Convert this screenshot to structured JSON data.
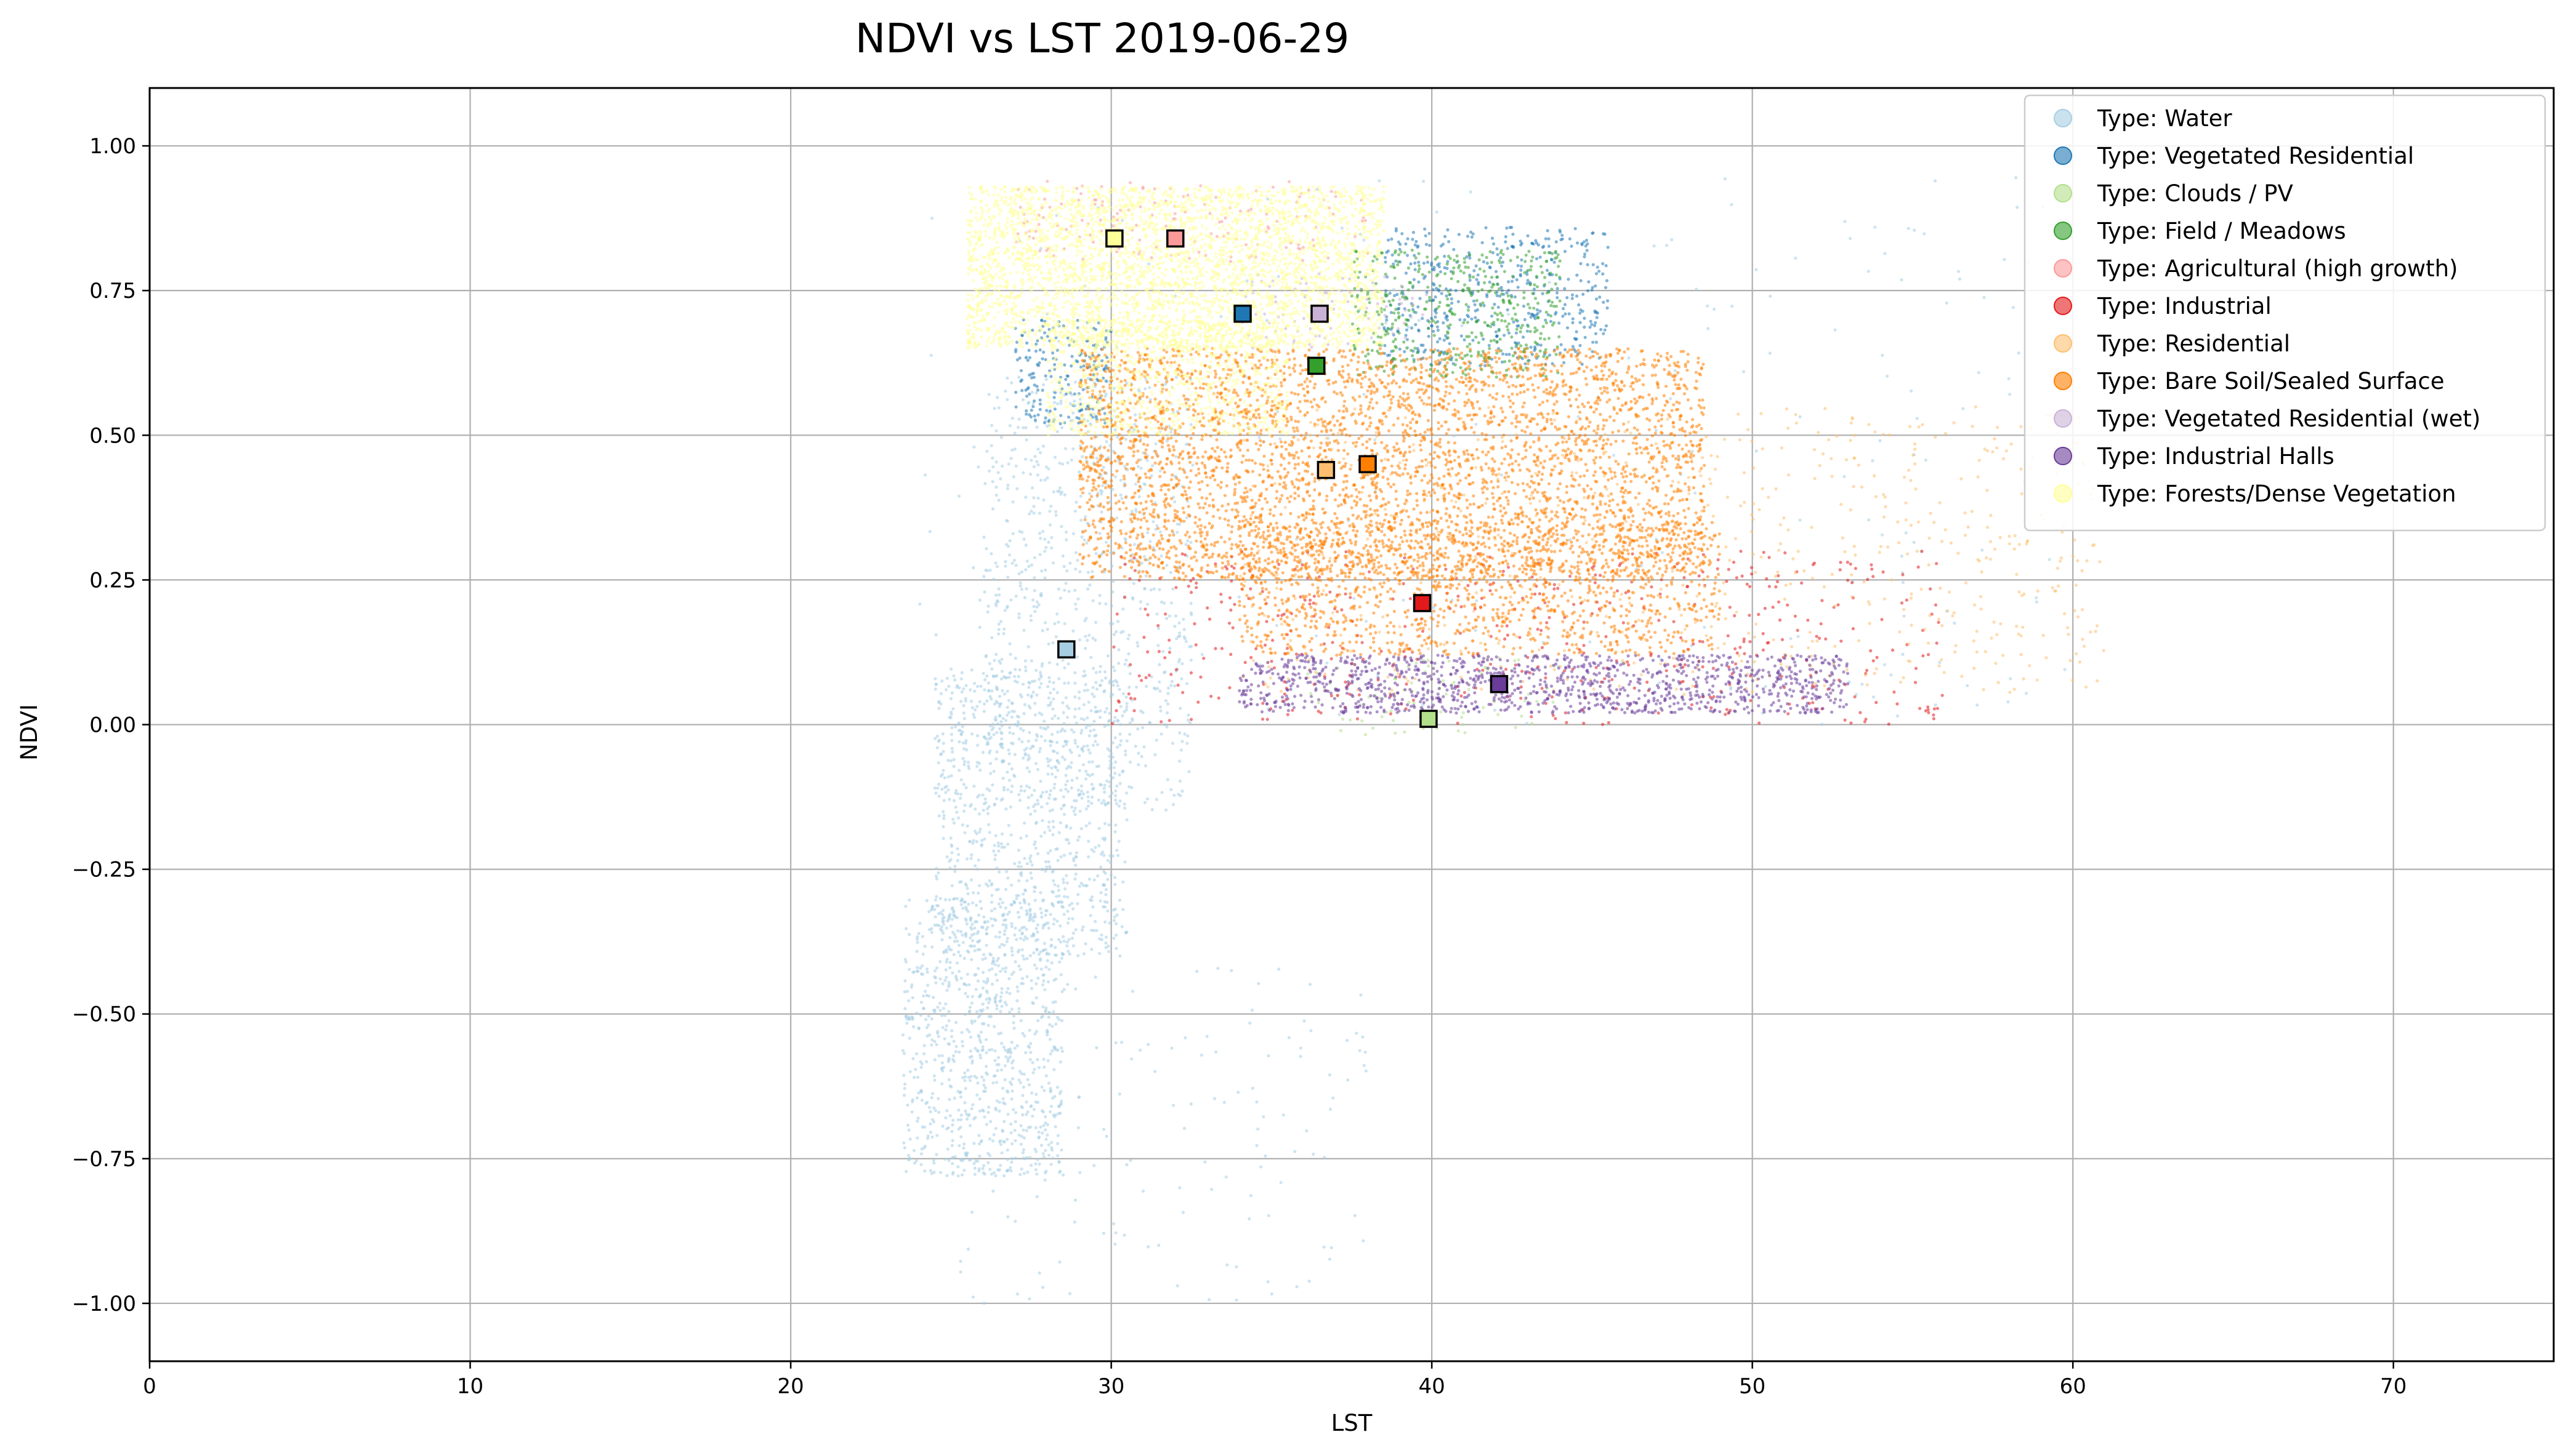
{
  "chart_data": {
    "type": "scatter",
    "title": "NDVI vs LST 2019-06-29",
    "xlabel": "LST",
    "ylabel": "NDVI",
    "xlim": [
      0,
      75
    ],
    "ylim": [
      -1.1,
      1.1
    ],
    "xticks": [
      0,
      10,
      20,
      30,
      40,
      50,
      60,
      70
    ],
    "yticks": [
      -1.0,
      -0.75,
      -0.5,
      -0.25,
      0.0,
      0.25,
      0.5,
      0.75,
      1.0
    ],
    "xtick_labels": [
      "0",
      "10",
      "20",
      "30",
      "40",
      "50",
      "60",
      "70"
    ],
    "ytick_labels": [
      "−1.00",
      "−0.75",
      "−0.50",
      "−0.25",
      "0.00",
      "0.25",
      "0.50",
      "0.75",
      "1.00"
    ],
    "grid": true,
    "legend_position": "top-right",
    "series": [
      {
        "name": "Type: Water",
        "color": "#a6cee3",
        "centroid": {
          "x": 28.6,
          "y": 0.13
        },
        "clouds": [
          {
            "x": [
              23.5,
              28.5
            ],
            "y": [
              -0.78,
              -0.3
            ],
            "n": 900
          },
          {
            "x": [
              24.5,
              30.5
            ],
            "y": [
              -0.4,
              0.1
            ],
            "n": 900
          },
          {
            "x": [
              26.0,
              32.5
            ],
            "y": [
              -0.15,
              0.6
            ],
            "n": 800
          },
          {
            "x": [
              25.0,
              38.0
            ],
            "y": [
              -1.0,
              -0.4
            ],
            "n": 150
          },
          {
            "x": [
              23.8,
              60.0
            ],
            "y": [
              0.0,
              0.95
            ],
            "n": 250
          }
        ]
      },
      {
        "name": "Type: Vegetated Residential",
        "color": "#1f78b4",
        "centroid": {
          "x": 34.1,
          "y": 0.71
        },
        "clouds": [
          {
            "x": [
              38.5,
              45.5
            ],
            "y": [
              0.62,
              0.86
            ],
            "n": 500
          },
          {
            "x": [
              27.0,
              30.0
            ],
            "y": [
              0.52,
              0.7
            ],
            "n": 200
          }
        ]
      },
      {
        "name": "Type: Clouds / PV",
        "color": "#b2df8a",
        "centroid": {
          "x": 39.9,
          "y": 0.01
        },
        "clouds": [
          {
            "x": [
              36.0,
              44.0
            ],
            "y": [
              -0.02,
              0.12
            ],
            "n": 80
          }
        ]
      },
      {
        "name": "Type: Field / Meadows",
        "color": "#33a02c",
        "centroid": {
          "x": 36.4,
          "y": 0.62
        },
        "clouds": [
          {
            "x": [
              37.5,
              44.0
            ],
            "y": [
              0.6,
              0.82
            ],
            "n": 450
          }
        ]
      },
      {
        "name": "Type: Agricultural (high growth)",
        "color": "#fb9a99",
        "centroid": {
          "x": 32.0,
          "y": 0.84
        },
        "clouds": [
          {
            "x": [
              27.0,
              38.0
            ],
            "y": [
              0.8,
              0.94
            ],
            "n": 150
          }
        ]
      },
      {
        "name": "Type: Industrial",
        "color": "#e31a1c",
        "centroid": {
          "x": 39.7,
          "y": 0.21
        },
        "clouds": [
          {
            "x": [
              30.0,
              56.0
            ],
            "y": [
              0.0,
              0.3
            ],
            "n": 500
          }
        ]
      },
      {
        "name": "Type: Residential",
        "color": "#fdbf6f",
        "centroid": {
          "x": 36.7,
          "y": 0.44
        },
        "clouds": [
          {
            "x": [
              34.0,
              61.0
            ],
            "y": [
              0.05,
              0.55
            ],
            "n": 700
          }
        ]
      },
      {
        "name": "Type: Bare Soil/Sealed Surface",
        "color": "#ff7f00",
        "centroid": {
          "x": 38.0,
          "y": 0.45
        },
        "clouds": [
          {
            "x": [
              29.0,
              48.5
            ],
            "y": [
              0.25,
              0.65
            ],
            "n": 4000
          },
          {
            "x": [
              34.0,
              49.0
            ],
            "y": [
              0.12,
              0.35
            ],
            "n": 1200
          }
        ]
      },
      {
        "name": "Type: Vegetated Residential (wet)",
        "color": "#cab2d6",
        "centroid": {
          "x": 36.5,
          "y": 0.71
        },
        "clouds": [
          {
            "x": [
              34.0,
              40.0
            ],
            "y": [
              0.65,
              0.78
            ],
            "n": 80
          }
        ]
      },
      {
        "name": "Type: Industrial Halls",
        "color": "#6a3d9a",
        "centroid": {
          "x": 42.1,
          "y": 0.07
        },
        "clouds": [
          {
            "x": [
              34.0,
              53.0
            ],
            "y": [
              0.02,
              0.12
            ],
            "n": 1200
          }
        ]
      },
      {
        "name": "Type: Forests/Dense Vegetation",
        "color": "#ffff99",
        "centroid": {
          "x": 30.1,
          "y": 0.84
        },
        "clouds": [
          {
            "x": [
              25.5,
              38.5
            ],
            "y": [
              0.65,
              0.93
            ],
            "n": 3500
          },
          {
            "x": [
              28.0,
              35.5
            ],
            "y": [
              0.5,
              0.7
            ],
            "n": 900
          }
        ]
      }
    ]
  }
}
